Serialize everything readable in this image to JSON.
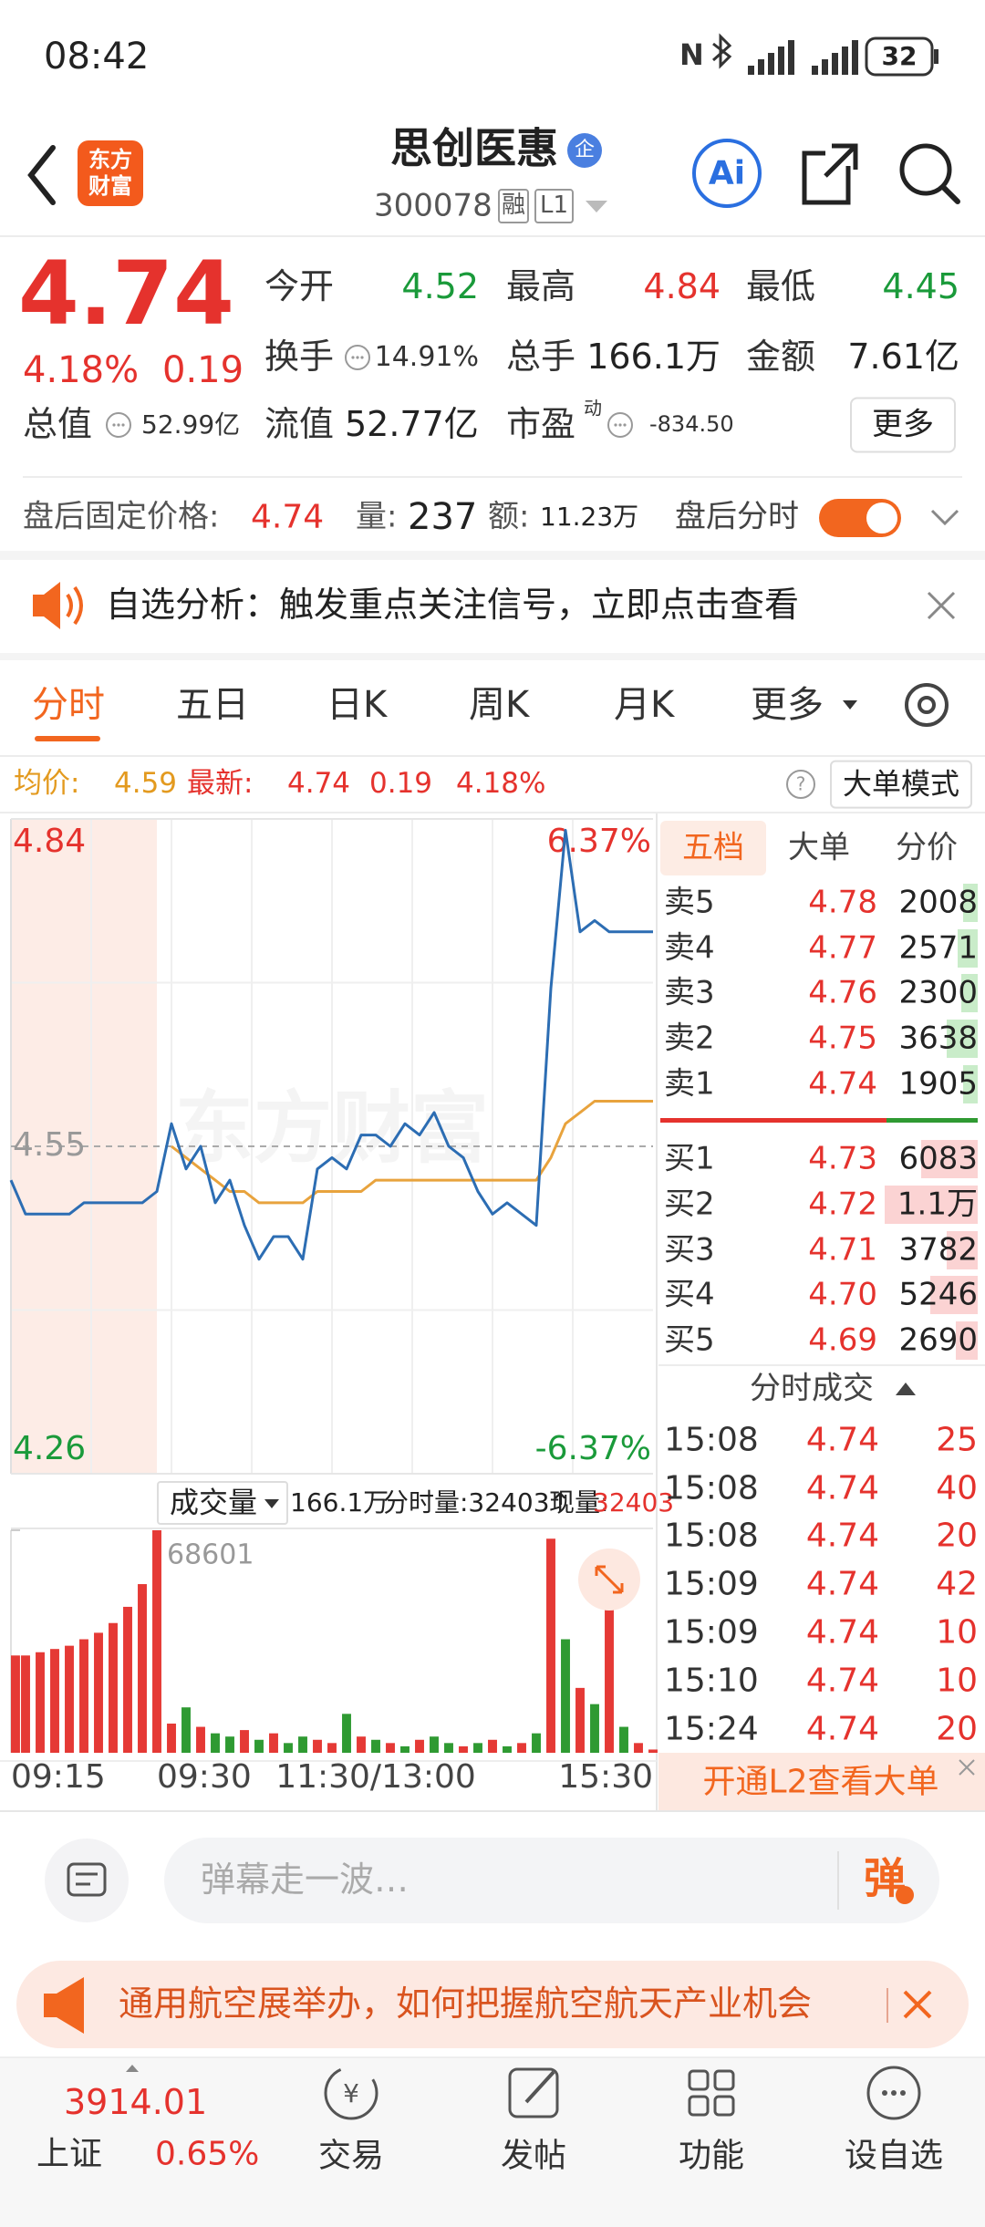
{
  "status_bar": {
    "time": "08:42",
    "battery": "32"
  },
  "header": {
    "logo": [
      "东方",
      "财富"
    ],
    "title": "思创医惠",
    "badge": "企",
    "code": "300078",
    "tags": [
      "融",
      "L1"
    ],
    "ai": "Ai"
  },
  "quote": {
    "price": "4.74",
    "change_pct": "4.18%",
    "change": "0.19",
    "fields": [
      {
        "label": "今开",
        "value": "4.52"
      },
      {
        "label": "最高",
        "value": "4.84"
      },
      {
        "label": "最低",
        "value": "4.45"
      },
      {
        "label": "换手",
        "value": "14.91%"
      },
      {
        "label": "总手",
        "value": "166.1万"
      },
      {
        "label": "金额",
        "value": "7.61亿"
      },
      {
        "label": "总值",
        "value": "52.99亿"
      },
      {
        "label": "流值",
        "value": "52.77亿"
      },
      {
        "label": "市盈",
        "value": "-834.50"
      }
    ],
    "pe_tag": "动",
    "more": "更多"
  },
  "after_hours": {
    "label": "盘后固定价格:",
    "price": "4.74",
    "vol_label": "量:",
    "vol": "237",
    "amt_label": "额:",
    "amt": "11.23万",
    "chart_label": "盘后分时"
  },
  "notice": "自选分析：触发重点关注信号，立即点击查看",
  "tabs": [
    "分时",
    "五日",
    "日K",
    "周K",
    "月K",
    "更多"
  ],
  "summary": {
    "avg_label": "均价:",
    "avg": "4.59",
    "last_label": "最新:",
    "last": "4.74",
    "change": "0.19",
    "change_pct": "4.18%",
    "mode": "大单模式"
  },
  "chart_data": [
    {
      "type": "line",
      "watermark": "东方财富",
      "categories": [
        "09:15",
        null,
        null,
        null,
        null,
        null,
        null,
        null,
        null,
        null,
        "09:30",
        null,
        null,
        null,
        null,
        null,
        null,
        null,
        null,
        null,
        null,
        null,
        null,
        null,
        null,
        "11:30/13:00",
        null,
        null,
        null,
        null,
        null,
        null,
        null,
        null,
        null,
        null,
        null,
        null,
        null,
        null,
        null,
        null,
        null,
        null,
        "15:30"
      ],
      "series": [
        {
          "color": "#2c6db3",
          "values": [
            4.52,
            4.49,
            4.49,
            4.49,
            4.49,
            4.5,
            4.5,
            4.5,
            4.5,
            4.5,
            4.51,
            4.57,
            4.53,
            4.55,
            4.5,
            4.52,
            4.48,
            4.45,
            4.47,
            4.47,
            4.45,
            4.53,
            4.54,
            4.53,
            4.56,
            4.56,
            4.55,
            4.57,
            4.56,
            4.58,
            4.55,
            4.54,
            4.51,
            4.49,
            4.5,
            4.49,
            4.48,
            4.69,
            4.83,
            4.74,
            4.75,
            4.74,
            4.74,
            4.74,
            4.74
          ]
        },
        {
          "color": "#e8a33d",
          "values": [
            null,
            null,
            null,
            null,
            null,
            null,
            null,
            null,
            null,
            null,
            null,
            4.55,
            4.54,
            4.53,
            4.52,
            4.51,
            4.51,
            4.5,
            4.5,
            4.5,
            4.5,
            4.51,
            4.51,
            4.51,
            4.51,
            4.52,
            4.52,
            4.52,
            4.52,
            4.52,
            4.52,
            4.52,
            4.52,
            4.52,
            4.52,
            4.52,
            4.52,
            4.54,
            4.57,
            4.58,
            4.59,
            4.59,
            4.59,
            4.59,
            4.59
          ]
        }
      ],
      "ylim": [
        4.26,
        4.84
      ],
      "yticks": [
        4.84,
        4.55,
        4.26
      ],
      "y2lim": [
        -6.37,
        6.37
      ],
      "y2ticks": [
        {
          "value": 6.37,
          "label": "6.37%"
        },
        {
          "value": -6.37,
          "label": "-6.37%"
        }
      ],
      "grid": true
    },
    {
      "type": "bar",
      "title": "成交量",
      "total": "166.1万",
      "period_volume": "分时量:32403↑",
      "current_label": "现量:",
      "current": "32403",
      "values": [
        30000,
        30000,
        31000,
        32000,
        33000,
        35000,
        37000,
        40000,
        45000,
        52000,
        68601,
        9000,
        14000,
        8000,
        6000,
        5000,
        7000,
        4000,
        6000,
        3000,
        5000,
        4000,
        3000,
        12000,
        5000,
        4000,
        3000,
        2000,
        4000,
        5000,
        3000,
        2000,
        3000,
        4000,
        2000,
        3000,
        6000,
        66000,
        35000,
        20000,
        15000,
        45000,
        8000,
        3000,
        1000
      ],
      "colors": [
        "#e53935",
        "#e53935",
        "#e53935",
        "#e53935",
        "#e53935",
        "#e53935",
        "#e53935",
        "#e53935",
        "#e53935",
        "#e53935",
        "#e53935",
        "#e53935",
        "#2f9a32",
        "#e53935",
        "#2f9a32",
        "#2f9a32",
        "#e53935",
        "#2f9a32",
        "#e53935",
        "#2f9a32",
        "#2f9a32",
        "#e53935",
        "#e53935",
        "#2f9a32",
        "#e53935",
        "#2f9a32",
        "#e53935",
        "#2f9a32",
        "#e53935",
        "#2f9a32",
        "#2f9a32",
        "#e53935",
        "#2f9a32",
        "#e53935",
        "#2f9a32",
        "#e53935",
        "#2f9a32",
        "#e53935",
        "#2f9a32",
        "#e53935",
        "#2f9a32",
        "#e53935",
        "#2f9a32",
        "#e53935",
        "#e53935"
      ],
      "ylim": [
        0,
        68601
      ],
      "yticks": [
        68601
      ]
    }
  ],
  "order_book": {
    "tabs": [
      "五档",
      "大单",
      "分价"
    ],
    "asks": [
      [
        "卖5",
        "4.78",
        "2008"
      ],
      [
        "卖4",
        "4.77",
        "2571"
      ],
      [
        "卖3",
        "4.76",
        "2300"
      ],
      [
        "卖2",
        "4.75",
        "3638"
      ],
      [
        "卖1",
        "4.74",
        "1905"
      ]
    ],
    "bids": [
      [
        "买1",
        "4.73",
        "6083"
      ],
      [
        "买2",
        "4.72",
        "1.1万"
      ],
      [
        "买3",
        "4.71",
        "3782"
      ],
      [
        "买4",
        "4.70",
        "5246"
      ],
      [
        "买5",
        "4.69",
        "2690"
      ]
    ]
  },
  "trades": {
    "title": "分时成交",
    "rows": [
      [
        "15:08",
        "4.74",
        "25"
      ],
      [
        "15:08",
        "4.74",
        "40"
      ],
      [
        "15:08",
        "4.74",
        "20"
      ],
      [
        "15:09",
        "4.74",
        "42"
      ],
      [
        "15:09",
        "4.74",
        "10"
      ],
      [
        "15:10",
        "4.74",
        "10"
      ],
      [
        "15:24",
        "4.74",
        "20"
      ]
    ],
    "promo": "开通L2查看大单"
  },
  "comment": {
    "placeholder": "弹幕走一波…",
    "button": "弹"
  },
  "ad": "通用航空展举办，如何把握航空航天产业机会",
  "bottom_nav": {
    "index_value": "3914.01",
    "index_name": "上证",
    "index_change": "0.65%",
    "items": [
      "交易",
      "发帖",
      "功能",
      "设自选"
    ]
  }
}
